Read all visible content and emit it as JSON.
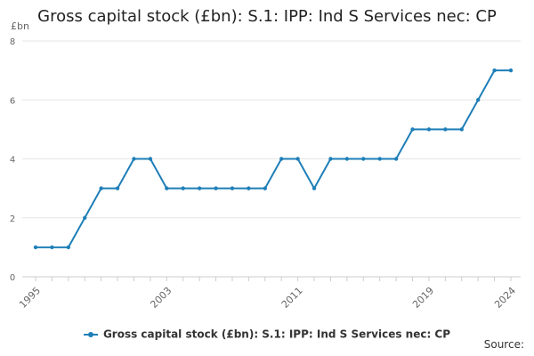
{
  "title": "Gross capital stock (£bn): S.1: IPP: Ind S Services nec: CP",
  "unit": "£bn",
  "source_label": "Source:",
  "colors": {
    "series": "#1f7fb8",
    "grid": "#e6e6e6",
    "axis": "#cccccc",
    "text": "#333333"
  },
  "chart_data": {
    "type": "line",
    "title": "Gross capital stock (£bn): S.1: IPP: Ind S Services nec: CP",
    "xlabel": "",
    "ylabel": "£bn",
    "xlim": [
      1995,
      2024
    ],
    "ylim": [
      0,
      8
    ],
    "x_ticks": [
      1995,
      2003,
      2011,
      2019,
      2024
    ],
    "y_ticks": [
      0,
      2,
      4,
      6,
      8
    ],
    "grid": "horizontal",
    "legend": "bottom-center",
    "series": [
      {
        "name": "Gross capital stock (£bn): S.1: IPP: Ind S Services nec: CP",
        "x": [
          1995,
          1996,
          1997,
          1998,
          1999,
          2000,
          2001,
          2002,
          2003,
          2004,
          2005,
          2006,
          2007,
          2008,
          2009,
          2010,
          2011,
          2012,
          2013,
          2014,
          2015,
          2016,
          2017,
          2018,
          2019,
          2020,
          2021,
          2022,
          2023,
          2024
        ],
        "values": [
          1,
          1,
          1,
          2,
          3,
          3,
          4,
          4,
          3,
          3,
          3,
          3,
          3,
          3,
          3,
          4,
          4,
          3,
          4,
          4,
          4,
          4,
          4,
          5,
          5,
          5,
          5,
          6,
          7,
          7
        ]
      }
    ]
  }
}
